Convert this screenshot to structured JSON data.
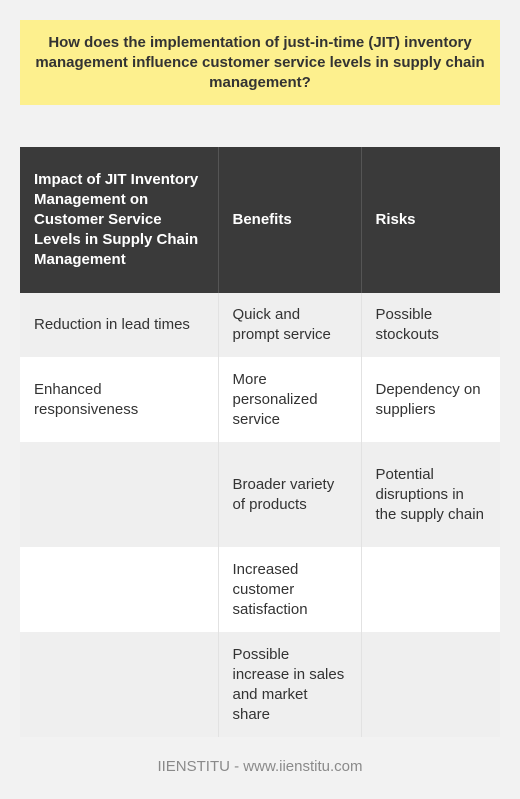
{
  "question": "How does the implementation of just-in-time (JIT) inventory management influence customer service levels in supply chain management?",
  "table": {
    "headers": [
      "Impact of JIT Inventory Management on Customer Service Levels in Supply Chain Management",
      "Benefits",
      "Risks"
    ],
    "rows": [
      {
        "impact": "Reduction in lead times",
        "benefit": "Quick and prompt service",
        "risk": "Possible stockouts"
      },
      {
        "impact": "Enhanced responsiveness",
        "benefit": "More personalized service",
        "risk": "Dependency on suppliers"
      },
      {
        "impact": "",
        "benefit": "Broader variety of products",
        "risk": "Potential disruptions in the supply chain"
      },
      {
        "impact": "",
        "benefit": "Increased customer satisfaction",
        "risk": ""
      },
      {
        "impact": "",
        "benefit": "Possible increase in sales and market share",
        "risk": ""
      }
    ]
  },
  "footer": "IIENSTITU - www.iienstitu.com"
}
